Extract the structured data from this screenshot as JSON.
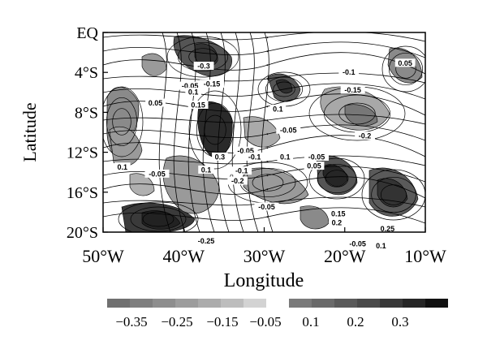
{
  "map": {
    "xlabel": "Longitude",
    "ylabel": "Latitude",
    "x_ticks": [
      "50°W",
      "40°W",
      "30°W",
      "20°W",
      "10°W"
    ],
    "y_ticks": [
      "EQ",
      "4°S",
      "8°S",
      "12°S",
      "16°S",
      "20°S"
    ],
    "x_range": [
      -50,
      -10
    ],
    "y_range": [
      -20,
      0
    ],
    "contour_labels": [
      {
        "text": "-0.3",
        "lon": -37.5,
        "lat": -3.5
      },
      {
        "text": "-0.15",
        "lon": -36.5,
        "lat": -5.3
      },
      {
        "text": "-0.05",
        "lon": -39.2,
        "lat": -5.5
      },
      {
        "text": "0.1",
        "lon": -38.8,
        "lat": -6.1
      },
      {
        "text": "0.15",
        "lon": -38.2,
        "lat": -7.4
      },
      {
        "text": "0.05",
        "lon": -43.5,
        "lat": -7.2
      },
      {
        "text": "-0.1",
        "lon": -19.5,
        "lat": -4.1
      },
      {
        "text": "-0.15",
        "lon": -19.0,
        "lat": -5.9
      },
      {
        "text": "0.05",
        "lon": -12.5,
        "lat": -3.2
      },
      {
        "text": "0.1",
        "lon": -28.3,
        "lat": -7.8
      },
      {
        "text": "-0.05",
        "lon": -27.0,
        "lat": -9.9
      },
      {
        "text": "-0.2",
        "lon": -17.5,
        "lat": -10.5
      },
      {
        "text": "0.3",
        "lon": -35.5,
        "lat": -12.6
      },
      {
        "text": "0.1",
        "lon": -37.2,
        "lat": -13.9
      },
      {
        "text": "-0.05",
        "lon": -32.3,
        "lat": -12.0
      },
      {
        "text": "-0.1",
        "lon": -31.2,
        "lat": -12.6
      },
      {
        "text": "-0.1",
        "lon": -32.8,
        "lat": -14.0
      },
      {
        "text": "-0.2",
        "lon": -33.3,
        "lat": -15.0
      },
      {
        "text": "0.1",
        "lon": -47.6,
        "lat": -13.6
      },
      {
        "text": "-0.05",
        "lon": -43.3,
        "lat": -14.3
      },
      {
        "text": "0.1",
        "lon": -27.4,
        "lat": -12.6
      },
      {
        "text": "-0.05",
        "lon": -23.5,
        "lat": -12.6
      },
      {
        "text": "0.05",
        "lon": -23.8,
        "lat": -13.5
      },
      {
        "text": "-0.05",
        "lon": -29.7,
        "lat": -17.6
      },
      {
        "text": "0.15",
        "lon": -20.8,
        "lat": -18.3
      },
      {
        "text": "0.2",
        "lon": -21.0,
        "lat": -19.2
      },
      {
        "text": "-0.25",
        "lon": -37.2,
        "lat": -21.0
      },
      {
        "text": "-0.05",
        "lon": -18.4,
        "lat": -21.3
      },
      {
        "text": "0.1",
        "lon": -15.5,
        "lat": -21.5
      },
      {
        "text": "0.25",
        "lon": -14.7,
        "lat": -19.8
      }
    ]
  },
  "colorbar": {
    "negative_labels": [
      "-0.35",
      "-0.25",
      "-0.15",
      "-0.05"
    ],
    "positive_labels": [
      "0.1",
      "0.2",
      "0.3"
    ],
    "negative_colors": [
      "#707070",
      "#7f7f7f",
      "#8e8e8e",
      "#9d9d9d",
      "#acacac",
      "#bdbdbd",
      "#d3d3d3"
    ],
    "positive_colors": [
      "#7a7a7a",
      "#6a6a6a",
      "#5a5a5a",
      "#4a4a4a",
      "#383838",
      "#262626",
      "#111111"
    ]
  }
}
